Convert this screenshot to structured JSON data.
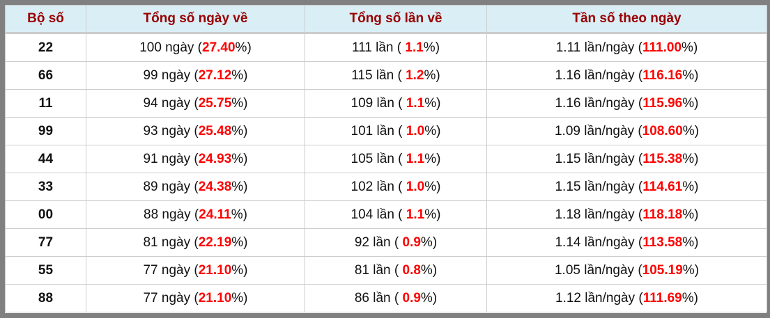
{
  "headers": [
    "Bộ số",
    "Tổng số ngày về",
    "Tổng số lần về",
    "Tần số theo ngày"
  ],
  "colors": {
    "header_bg": "#daeef6",
    "header_text": "#990000",
    "highlight": "#ff0000",
    "frame": "#808080"
  },
  "rows": [
    {
      "bo_so": "22",
      "ngay": "100 ngày (",
      "ngay_pct": "27.40",
      "lan": "111 lần ( ",
      "lan_pct": "1.1",
      "tan_so": "1.11 lần/ngày (",
      "tan_so_pct": "111.00"
    },
    {
      "bo_so": "66",
      "ngay": "99 ngày (",
      "ngay_pct": "27.12",
      "lan": "115 lần ( ",
      "lan_pct": "1.2",
      "tan_so": "1.16 lần/ngày (",
      "tan_so_pct": "116.16"
    },
    {
      "bo_so": "11",
      "ngay": "94 ngày (",
      "ngay_pct": "25.75",
      "lan": "109 lần ( ",
      "lan_pct": "1.1",
      "tan_so": "1.16 lần/ngày (",
      "tan_so_pct": "115.96"
    },
    {
      "bo_so": "99",
      "ngay": "93 ngày (",
      "ngay_pct": "25.48",
      "lan": "101 lần ( ",
      "lan_pct": "1.0",
      "tan_so": "1.09 lần/ngày (",
      "tan_so_pct": "108.60"
    },
    {
      "bo_so": "44",
      "ngay": "91 ngày (",
      "ngay_pct": "24.93",
      "lan": "105 lần ( ",
      "lan_pct": "1.1",
      "tan_so": "1.15 lần/ngày (",
      "tan_so_pct": "115.38"
    },
    {
      "bo_so": "33",
      "ngay": "89 ngày (",
      "ngay_pct": "24.38",
      "lan": "102 lần ( ",
      "lan_pct": "1.0",
      "tan_so": "1.15 lần/ngày (",
      "tan_so_pct": "114.61"
    },
    {
      "bo_so": "00",
      "ngay": "88 ngày (",
      "ngay_pct": "24.11",
      "lan": "104 lần ( ",
      "lan_pct": "1.1",
      "tan_so": "1.18 lần/ngày (",
      "tan_so_pct": "118.18"
    },
    {
      "bo_so": "77",
      "ngay": "81 ngày (",
      "ngay_pct": "22.19",
      "lan": "92 lần ( ",
      "lan_pct": "0.9",
      "tan_so": "1.14 lần/ngày (",
      "tan_so_pct": "113.58"
    },
    {
      "bo_so": "55",
      "ngay": "77 ngày (",
      "ngay_pct": "21.10",
      "lan": "81 lần ( ",
      "lan_pct": "0.8",
      "tan_so": "1.05 lần/ngày (",
      "tan_so_pct": "105.19"
    },
    {
      "bo_so": "88",
      "ngay": "77 ngày (",
      "ngay_pct": "21.10",
      "lan": "86 lần ( ",
      "lan_pct": "0.9",
      "tan_so": "1.12 lần/ngày (",
      "tan_so_pct": "111.69"
    }
  ],
  "suffix": "%)"
}
